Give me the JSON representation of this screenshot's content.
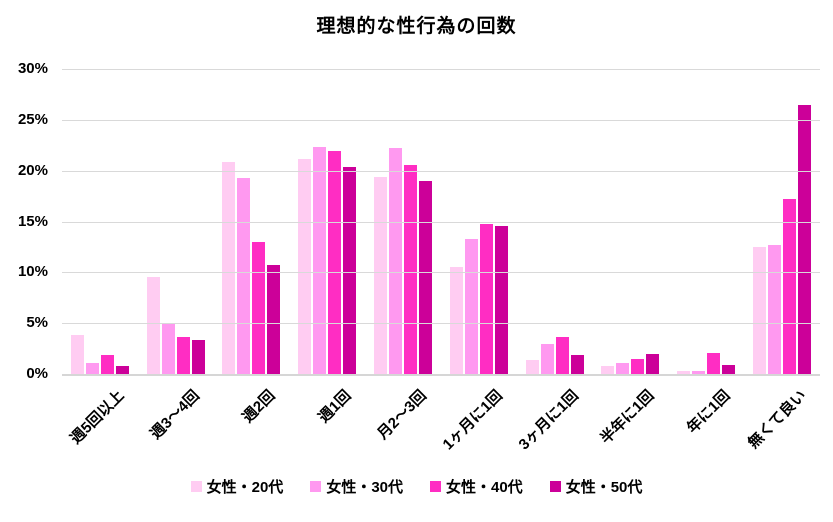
{
  "title": "理想的な性行為の回数",
  "chart_data": {
    "type": "bar",
    "title": "理想的な性行為の回数",
    "categories": [
      "週5回以上",
      "週3〜4回",
      "週2回",
      "週1回",
      "月2〜3回",
      "1ヶ月に1回",
      "3ヶ月に1回",
      "半年に1回",
      "年に1回",
      "無くて良い"
    ],
    "series": [
      {
        "name": "女性・20代",
        "color": "#FFCCF2",
        "values": [
          3.8,
          9.5,
          20.9,
          21.1,
          19.4,
          10.5,
          1.4,
          0.8,
          0.3,
          12.5
        ]
      },
      {
        "name": "女性・30代",
        "color": "#FF99F0",
        "values": [
          1.1,
          4.9,
          19.3,
          22.3,
          22.2,
          13.3,
          3.0,
          1.1,
          0.3,
          12.7
        ]
      },
      {
        "name": "女性・40代",
        "color": "#FF2DC3",
        "values": [
          1.9,
          3.6,
          13.0,
          21.9,
          20.6,
          14.8,
          3.6,
          1.5,
          2.1,
          17.2
        ]
      },
      {
        "name": "女性・50代",
        "color": "#CC0099",
        "values": [
          0.8,
          3.3,
          10.7,
          20.4,
          19.0,
          14.6,
          1.9,
          2.0,
          0.9,
          26.5
        ]
      }
    ],
    "ylim": [
      0,
      30
    ],
    "ytick_step": 5,
    "ytick_labels": [
      "0%",
      "5%",
      "10%",
      "15%",
      "20%",
      "25%",
      "30%"
    ],
    "grid": true,
    "gridline_color": "#D9D9D9",
    "legend_position": "bottom"
  }
}
